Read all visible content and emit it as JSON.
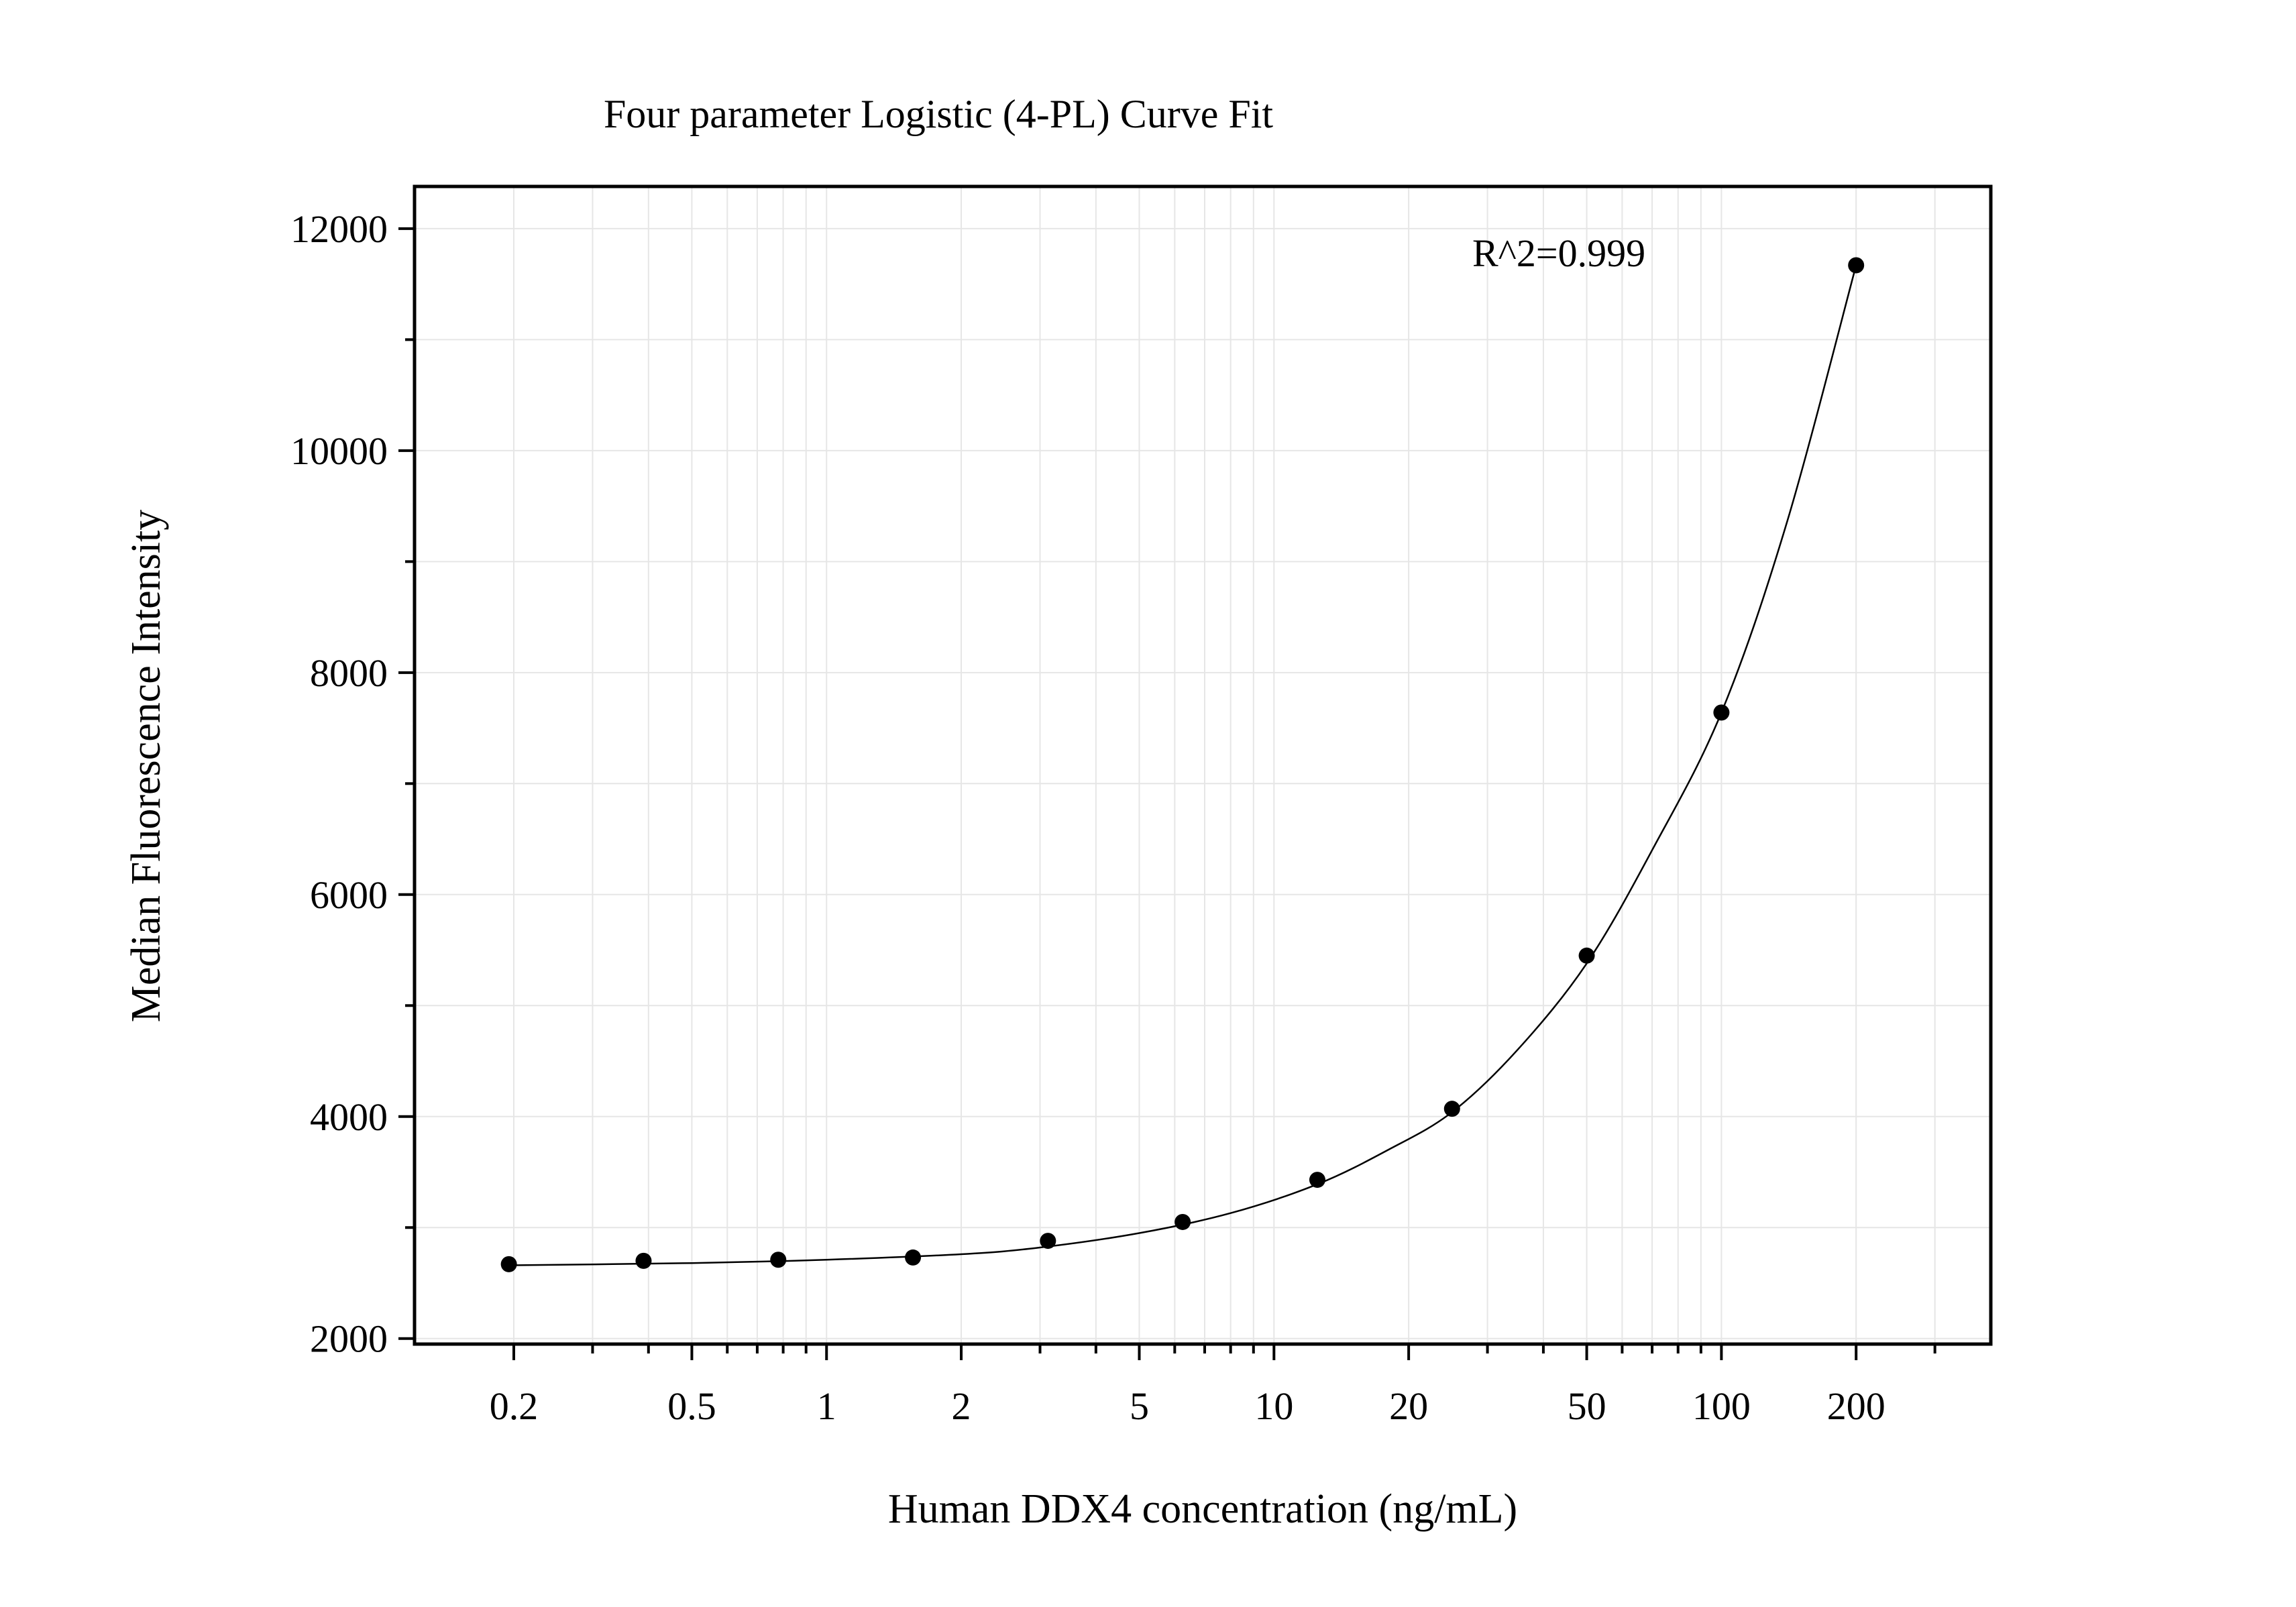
{
  "chart_data": {
    "type": "scatter",
    "title": "Four parameter Logistic (4-PL) Curve Fit",
    "xlabel": "Human DDX4 concentration (ng/mL)",
    "ylabel": "Median Fluorescence Intensity",
    "annotation": "R^2=0.999",
    "x_scale": "log",
    "xlim": [
      0.12,
      400
    ],
    "ylim": [
      1950,
      12380
    ],
    "x_ticks": [
      {
        "value": 0.2,
        "label": "0.2"
      },
      {
        "value": 0.5,
        "label": "0.5"
      },
      {
        "value": 1,
        "label": "1"
      },
      {
        "value": 2,
        "label": "2"
      },
      {
        "value": 5,
        "label": "5"
      },
      {
        "value": 10,
        "label": "10"
      },
      {
        "value": 20,
        "label": "20"
      },
      {
        "value": 50,
        "label": "50"
      },
      {
        "value": 100,
        "label": "100"
      },
      {
        "value": 200,
        "label": "200"
      }
    ],
    "y_ticks": [
      {
        "value": 2000,
        "label": "2000"
      },
      {
        "value": 4000,
        "label": "4000"
      },
      {
        "value": 6000,
        "label": "6000"
      },
      {
        "value": 8000,
        "label": "8000"
      },
      {
        "value": 10000,
        "label": "10000"
      },
      {
        "value": 12000,
        "label": "12000"
      }
    ],
    "y_minor_ticks": [
      3000,
      5000,
      7000,
      9000,
      11000
    ],
    "grid": true,
    "points": [
      {
        "x": 0.195,
        "y": 2670
      },
      {
        "x": 0.39,
        "y": 2700
      },
      {
        "x": 0.78,
        "y": 2710
      },
      {
        "x": 1.56,
        "y": 2730
      },
      {
        "x": 3.125,
        "y": 2880
      },
      {
        "x": 6.25,
        "y": 3050
      },
      {
        "x": 12.5,
        "y": 3430
      },
      {
        "x": 25,
        "y": 4070
      },
      {
        "x": 50,
        "y": 5450
      },
      {
        "x": 100,
        "y": 7640
      },
      {
        "x": 200,
        "y": 11670
      }
    ],
    "fit_curve": [
      {
        "x": 0.195,
        "y": 2660
      },
      {
        "x": 0.5,
        "y": 2680
      },
      {
        "x": 1,
        "y": 2710
      },
      {
        "x": 2,
        "y": 2760
      },
      {
        "x": 3,
        "y": 2820
      },
      {
        "x": 5,
        "y": 2950
      },
      {
        "x": 8,
        "y": 3130
      },
      {
        "x": 12.5,
        "y": 3390
      },
      {
        "x": 18,
        "y": 3700
      },
      {
        "x": 25,
        "y": 4040
      },
      {
        "x": 35,
        "y": 4600
      },
      {
        "x": 50,
        "y": 5380
      },
      {
        "x": 70,
        "y": 6400
      },
      {
        "x": 100,
        "y": 7640
      },
      {
        "x": 140,
        "y": 9350
      },
      {
        "x": 200,
        "y": 11670
      }
    ],
    "colors": {
      "points": "#000000",
      "curve": "#000000",
      "grid": "#e6e6e6",
      "frame": "#000000"
    }
  }
}
